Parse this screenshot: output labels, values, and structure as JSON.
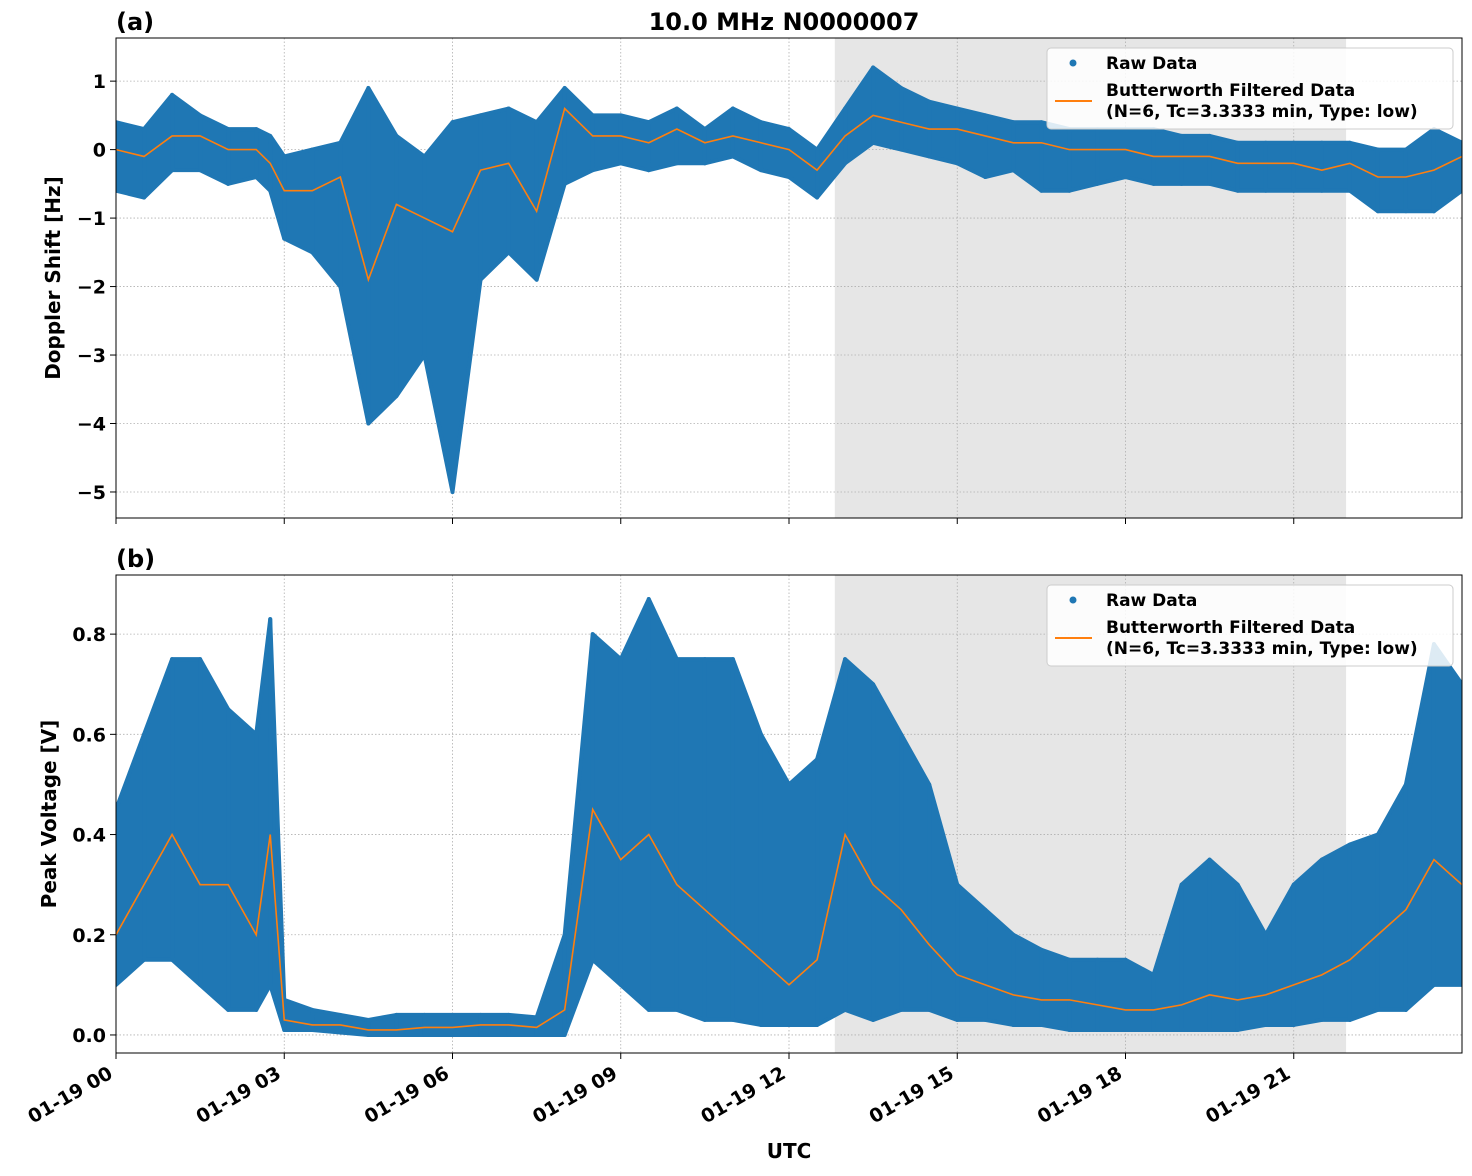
{
  "figure": {
    "title": "10.0 MHz N0000007",
    "xlabel": "UTC"
  },
  "colors": {
    "raw": "#1f77b4",
    "filtered": "#ff7f0e",
    "shade": "#e6e6e6",
    "grid": "#b0b0b0"
  },
  "legend": {
    "raw_label": "Raw Data",
    "filtered_label_line1": "Butterworth Filtered Data",
    "filtered_label_line2": "(N=6, Tc=3.3333 min, Type: low)",
    "placement": "top-right"
  },
  "chart_data": [
    {
      "type": "scatter",
      "panel_label": "(a)",
      "title": "10.0 MHz N0000007",
      "xlabel": "",
      "ylabel": "Doppler Shift [Hz]",
      "grid": true,
      "xlim": [
        "01-19 00:00",
        "01-20 00:00"
      ],
      "ylim": [
        -5.38,
        1.63
      ],
      "xticks": [
        "01-19 00",
        "01-19 03",
        "01-19 06",
        "01-19 09",
        "01-19 12",
        "01-19 15",
        "01-19 18",
        "01-19 21"
      ],
      "yticks": [
        1,
        0,
        -1,
        -2,
        -3,
        -4,
        -5
      ],
      "ytick_labels": [
        "1",
        "0",
        "−1",
        "−2",
        "−3",
        "−4",
        "−5"
      ],
      "shaded_span": [
        "01-19 12:49",
        "01-19 21:56"
      ],
      "x": [
        "00:00",
        "00:30",
        "01:00",
        "01:30",
        "02:00",
        "02:30",
        "02:45",
        "03:00",
        "03:30",
        "04:00",
        "04:30",
        "05:00",
        "05:30",
        "06:00",
        "06:30",
        "07:00",
        "07:30",
        "08:00",
        "08:30",
        "09:00",
        "09:30",
        "10:00",
        "10:30",
        "11:00",
        "11:30",
        "12:00",
        "12:30",
        "13:00",
        "13:30",
        "14:00",
        "14:30",
        "15:00",
        "15:30",
        "16:00",
        "16:30",
        "17:00",
        "17:30",
        "18:00",
        "18:30",
        "19:00",
        "19:30",
        "20:00",
        "20:30",
        "21:00",
        "21:30",
        "22:00",
        "22:30",
        "23:00",
        "23:30",
        "24:00"
      ],
      "series": [
        {
          "name": "Raw Data",
          "kind": "scatter-envelope",
          "low": [
            -0.6,
            -0.7,
            -0.3,
            -0.3,
            -0.5,
            -0.4,
            -0.6,
            -1.3,
            -1.5,
            -2.0,
            -4.0,
            -3.6,
            -3.0,
            -5.0,
            -1.9,
            -1.5,
            -1.9,
            -0.5,
            -0.3,
            -0.2,
            -0.3,
            -0.2,
            -0.2,
            -0.1,
            -0.3,
            -0.4,
            -0.7,
            -0.2,
            0.1,
            0.0,
            -0.1,
            -0.2,
            -0.4,
            -0.3,
            -0.6,
            -0.6,
            -0.5,
            -0.4,
            -0.5,
            -0.5,
            -0.5,
            -0.6,
            -0.6,
            -0.6,
            -0.6,
            -0.6,
            -0.9,
            -0.9,
            -0.9,
            -0.6
          ],
          "high": [
            0.4,
            0.3,
            0.8,
            0.5,
            0.3,
            0.3,
            0.2,
            -0.1,
            0.0,
            0.1,
            0.9,
            0.2,
            -0.1,
            0.4,
            0.5,
            0.6,
            0.4,
            0.9,
            0.5,
            0.5,
            0.4,
            0.6,
            0.3,
            0.6,
            0.4,
            0.3,
            0.0,
            0.6,
            1.2,
            0.9,
            0.7,
            0.6,
            0.5,
            0.4,
            0.4,
            0.3,
            0.3,
            0.3,
            0.3,
            0.2,
            0.2,
            0.1,
            0.1,
            0.1,
            0.1,
            0.1,
            0.0,
            0.0,
            0.3,
            0.1
          ]
        },
        {
          "name": "Butterworth Filtered Data",
          "kind": "line",
          "values": [
            0.0,
            -0.1,
            0.2,
            0.2,
            0.0,
            0.0,
            -0.2,
            -0.6,
            -0.6,
            -0.4,
            -1.9,
            -0.8,
            -1.0,
            -1.2,
            -0.3,
            -0.2,
            -0.9,
            0.6,
            0.2,
            0.2,
            0.1,
            0.3,
            0.1,
            0.2,
            0.1,
            0.0,
            -0.3,
            0.2,
            0.5,
            0.4,
            0.3,
            0.3,
            0.2,
            0.1,
            0.1,
            0.0,
            0.0,
            0.0,
            -0.1,
            -0.1,
            -0.1,
            -0.2,
            -0.2,
            -0.2,
            -0.3,
            -0.2,
            -0.4,
            -0.4,
            -0.3,
            -0.1
          ]
        }
      ]
    },
    {
      "type": "scatter",
      "panel_label": "(b)",
      "xlabel": "UTC",
      "ylabel": "Peak Voltage [V]",
      "grid": true,
      "xlim": [
        "01-19 00:00",
        "01-20 00:00"
      ],
      "ylim": [
        -0.036,
        0.918
      ],
      "xticks": [
        "01-19 00",
        "01-19 03",
        "01-19 06",
        "01-19 09",
        "01-19 12",
        "01-19 15",
        "01-19 18",
        "01-19 21"
      ],
      "yticks": [
        0.0,
        0.2,
        0.4,
        0.6,
        0.8
      ],
      "ytick_labels": [
        "0.0",
        "0.2",
        "0.4",
        "0.6",
        "0.8"
      ],
      "shaded_span": [
        "01-19 12:49",
        "01-19 21:56"
      ],
      "x": [
        "00:00",
        "00:30",
        "01:00",
        "01:30",
        "02:00",
        "02:30",
        "02:45",
        "03:00",
        "03:30",
        "04:00",
        "04:30",
        "05:00",
        "05:30",
        "06:00",
        "06:30",
        "07:00",
        "07:30",
        "08:00",
        "08:30",
        "09:00",
        "09:30",
        "10:00",
        "10:30",
        "11:00",
        "11:30",
        "12:00",
        "12:30",
        "13:00",
        "13:30",
        "14:00",
        "14:30",
        "15:00",
        "15:30",
        "16:00",
        "16:30",
        "17:00",
        "17:30",
        "18:00",
        "18:30",
        "19:00",
        "19:30",
        "20:00",
        "20:30",
        "21:00",
        "21:30",
        "22:00",
        "22:30",
        "23:00",
        "23:30",
        "24:00"
      ],
      "series": [
        {
          "name": "Raw Data",
          "kind": "scatter-envelope",
          "low": [
            0.1,
            0.15,
            0.15,
            0.1,
            0.05,
            0.05,
            0.1,
            0.01,
            0.01,
            0.005,
            0,
            0,
            0,
            0,
            0,
            0,
            0,
            0,
            0.15,
            0.1,
            0.05,
            0.05,
            0.03,
            0.03,
            0.02,
            0.02,
            0.02,
            0.05,
            0.03,
            0.05,
            0.05,
            0.03,
            0.03,
            0.02,
            0.02,
            0.01,
            0.01,
            0.01,
            0.01,
            0.01,
            0.01,
            0.01,
            0.02,
            0.02,
            0.03,
            0.03,
            0.05,
            0.05,
            0.1,
            0.1
          ],
          "high": [
            0.45,
            0.6,
            0.75,
            0.75,
            0.65,
            0.6,
            0.83,
            0.07,
            0.05,
            0.04,
            0.03,
            0.04,
            0.04,
            0.04,
            0.04,
            0.04,
            0.035,
            0.2,
            0.8,
            0.75,
            0.87,
            0.75,
            0.75,
            0.75,
            0.6,
            0.5,
            0.55,
            0.75,
            0.7,
            0.6,
            0.5,
            0.3,
            0.25,
            0.2,
            0.17,
            0.15,
            0.15,
            0.15,
            0.12,
            0.3,
            0.35,
            0.3,
            0.2,
            0.3,
            0.35,
            0.38,
            0.4,
            0.5,
            0.78,
            0.7
          ]
        },
        {
          "name": "Butterworth Filtered Data",
          "kind": "line",
          "values": [
            0.2,
            0.3,
            0.4,
            0.3,
            0.3,
            0.2,
            0.4,
            0.03,
            0.02,
            0.02,
            0.01,
            0.01,
            0.015,
            0.015,
            0.02,
            0.02,
            0.015,
            0.05,
            0.45,
            0.35,
            0.4,
            0.3,
            0.25,
            0.2,
            0.15,
            0.1,
            0.15,
            0.4,
            0.3,
            0.25,
            0.18,
            0.12,
            0.1,
            0.08,
            0.07,
            0.07,
            0.06,
            0.05,
            0.05,
            0.06,
            0.08,
            0.07,
            0.08,
            0.1,
            0.12,
            0.15,
            0.2,
            0.25,
            0.35,
            0.3
          ]
        }
      ]
    }
  ]
}
